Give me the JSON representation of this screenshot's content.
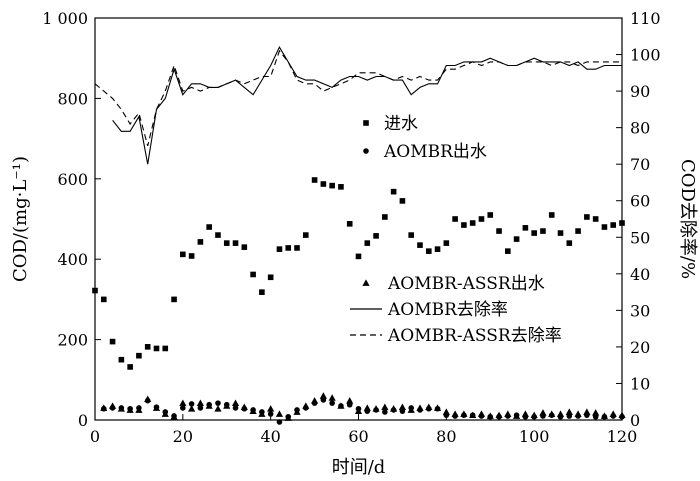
{
  "chart_data": {
    "type": "scatter",
    "xlabel": "时间/d",
    "ylabel_left": "COD/(mg·L⁻¹)",
    "ylabel_right": "COD去除率/%",
    "xlim": [
      0,
      120
    ],
    "ylim_left": [
      0,
      1000
    ],
    "ylim_right": [
      0,
      110
    ],
    "x_ticks": [
      0,
      20,
      40,
      60,
      80,
      100,
      120
    ],
    "y_left_ticks": [
      0,
      200,
      400,
      600,
      800,
      1000
    ],
    "y_left_tick_labels": [
      "0",
      "200",
      "400",
      "600",
      "800",
      "1 000"
    ],
    "y_right_ticks": [
      0,
      10,
      20,
      30,
      40,
      50,
      60,
      70,
      80,
      90,
      100,
      110
    ],
    "grid": false,
    "series": [
      {
        "name": "进水",
        "axis": "left",
        "marker": "square",
        "points": [
          [
            0,
            322
          ],
          [
            2,
            300
          ],
          [
            4,
            195
          ],
          [
            6,
            150
          ],
          [
            8,
            132
          ],
          [
            10,
            160
          ],
          [
            12,
            182
          ],
          [
            14,
            178
          ],
          [
            16,
            178
          ],
          [
            18,
            300
          ],
          [
            20,
            412
          ],
          [
            22,
            408
          ],
          [
            24,
            443
          ],
          [
            26,
            480
          ],
          [
            28,
            460
          ],
          [
            30,
            440
          ],
          [
            32,
            440
          ],
          [
            34,
            430
          ],
          [
            36,
            362
          ],
          [
            38,
            318
          ],
          [
            40,
            355
          ],
          [
            42,
            425
          ],
          [
            44,
            428
          ],
          [
            46,
            428
          ],
          [
            48,
            460
          ],
          [
            50,
            597
          ],
          [
            52,
            587
          ],
          [
            54,
            583
          ],
          [
            56,
            580
          ],
          [
            58,
            488
          ],
          [
            60,
            407
          ],
          [
            62,
            440
          ],
          [
            64,
            458
          ],
          [
            66,
            505
          ],
          [
            68,
            568
          ],
          [
            70,
            545
          ],
          [
            72,
            460
          ],
          [
            74,
            435
          ],
          [
            76,
            420
          ],
          [
            78,
            425
          ],
          [
            80,
            440
          ],
          [
            82,
            500
          ],
          [
            84,
            485
          ],
          [
            86,
            490
          ],
          [
            88,
            500
          ],
          [
            90,
            510
          ],
          [
            92,
            470
          ],
          [
            94,
            420
          ],
          [
            96,
            450
          ],
          [
            98,
            478
          ],
          [
            100,
            465
          ],
          [
            102,
            470
          ],
          [
            104,
            510
          ],
          [
            106,
            465
          ],
          [
            108,
            440
          ],
          [
            110,
            470
          ],
          [
            112,
            505
          ],
          [
            114,
            500
          ],
          [
            116,
            480
          ],
          [
            118,
            485
          ],
          [
            120,
            490
          ]
        ]
      },
      {
        "name": "AOMBR出水",
        "axis": "left",
        "marker": "circle",
        "points": [
          [
            2,
            28
          ],
          [
            4,
            30
          ],
          [
            6,
            30
          ],
          [
            8,
            28
          ],
          [
            10,
            30
          ],
          [
            12,
            48
          ],
          [
            14,
            32
          ],
          [
            16,
            20
          ],
          [
            18,
            10
          ],
          [
            20,
            30
          ],
          [
            22,
            40
          ],
          [
            24,
            30
          ],
          [
            26,
            38
          ],
          [
            28,
            42
          ],
          [
            30,
            38
          ],
          [
            32,
            30
          ],
          [
            34,
            28
          ],
          [
            36,
            25
          ],
          [
            38,
            20
          ],
          [
            40,
            15
          ],
          [
            42,
            -5
          ],
          [
            44,
            8
          ],
          [
            46,
            25
          ],
          [
            48,
            30
          ],
          [
            50,
            42
          ],
          [
            52,
            50
          ],
          [
            54,
            42
          ],
          [
            56,
            35
          ],
          [
            58,
            38
          ],
          [
            60,
            28
          ],
          [
            62,
            22
          ],
          [
            64,
            25
          ],
          [
            66,
            20
          ],
          [
            68,
            25
          ],
          [
            70,
            22
          ],
          [
            72,
            30
          ],
          [
            74,
            25
          ],
          [
            76,
            28
          ],
          [
            78,
            28
          ],
          [
            80,
            12
          ],
          [
            82,
            10
          ],
          [
            84,
            12
          ],
          [
            86,
            12
          ],
          [
            88,
            10
          ],
          [
            90,
            8
          ],
          [
            92,
            8
          ],
          [
            94,
            10
          ],
          [
            96,
            12
          ],
          [
            98,
            8
          ],
          [
            100,
            8
          ],
          [
            102,
            10
          ],
          [
            104,
            12
          ],
          [
            106,
            8
          ],
          [
            108,
            10
          ],
          [
            110,
            10
          ],
          [
            112,
            12
          ],
          [
            114,
            8
          ],
          [
            116,
            8
          ],
          [
            118,
            10
          ],
          [
            120,
            8
          ]
        ]
      },
      {
        "name": "AOMBR-ASSR出水",
        "axis": "left",
        "marker": "triangle",
        "points": [
          [
            2,
            30
          ],
          [
            4,
            35
          ],
          [
            6,
            28
          ],
          [
            8,
            25
          ],
          [
            10,
            25
          ],
          [
            12,
            52
          ],
          [
            14,
            30
          ],
          [
            16,
            15
          ],
          [
            18,
            8
          ],
          [
            20,
            42
          ],
          [
            22,
            28
          ],
          [
            24,
            42
          ],
          [
            26,
            35
          ],
          [
            28,
            28
          ],
          [
            30,
            35
          ],
          [
            32,
            42
          ],
          [
            34,
            32
          ],
          [
            36,
            22
          ],
          [
            38,
            15
          ],
          [
            40,
            28
          ],
          [
            42,
            15
          ],
          [
            44,
            5
          ],
          [
            46,
            20
          ],
          [
            48,
            35
          ],
          [
            50,
            48
          ],
          [
            52,
            60
          ],
          [
            54,
            55
          ],
          [
            56,
            35
          ],
          [
            58,
            48
          ],
          [
            60,
            22
          ],
          [
            62,
            30
          ],
          [
            64,
            28
          ],
          [
            66,
            32
          ],
          [
            68,
            28
          ],
          [
            70,
            32
          ],
          [
            72,
            25
          ],
          [
            74,
            30
          ],
          [
            76,
            32
          ],
          [
            78,
            30
          ],
          [
            80,
            20
          ],
          [
            82,
            15
          ],
          [
            84,
            15
          ],
          [
            86,
            12
          ],
          [
            88,
            15
          ],
          [
            90,
            10
          ],
          [
            92,
            12
          ],
          [
            94,
            15
          ],
          [
            96,
            10
          ],
          [
            98,
            15
          ],
          [
            100,
            12
          ],
          [
            102,
            18
          ],
          [
            104,
            15
          ],
          [
            106,
            15
          ],
          [
            108,
            20
          ],
          [
            110,
            15
          ],
          [
            112,
            20
          ],
          [
            114,
            18
          ],
          [
            116,
            10
          ],
          [
            118,
            15
          ],
          [
            120,
            12
          ]
        ]
      },
      {
        "name": "AOMBR去除率",
        "axis": "right",
        "style": "solid",
        "points": [
          [
            4,
            82
          ],
          [
            6,
            79
          ],
          [
            8,
            79
          ],
          [
            10,
            83
          ],
          [
            12,
            70
          ],
          [
            14,
            85
          ],
          [
            16,
            88
          ],
          [
            18,
            96
          ],
          [
            20,
            89
          ],
          [
            22,
            92
          ],
          [
            24,
            92
          ],
          [
            26,
            91
          ],
          [
            28,
            91
          ],
          [
            30,
            92
          ],
          [
            32,
            93
          ],
          [
            34,
            91
          ],
          [
            36,
            89
          ],
          [
            38,
            93
          ],
          [
            40,
            97
          ],
          [
            42,
            102
          ],
          [
            44,
            98
          ],
          [
            46,
            94
          ],
          [
            48,
            93
          ],
          [
            50,
            93
          ],
          [
            52,
            92
          ],
          [
            54,
            91
          ],
          [
            56,
            93
          ],
          [
            58,
            94
          ],
          [
            60,
            94
          ],
          [
            62,
            93
          ],
          [
            64,
            94
          ],
          [
            66,
            94
          ],
          [
            68,
            93
          ],
          [
            70,
            93
          ],
          [
            72,
            89
          ],
          [
            74,
            91
          ],
          [
            76,
            92
          ],
          [
            78,
            92
          ],
          [
            80,
            97
          ],
          [
            82,
            97
          ],
          [
            84,
            98
          ],
          [
            86,
            98
          ],
          [
            88,
            98
          ],
          [
            90,
            99
          ],
          [
            92,
            98
          ],
          [
            94,
            97
          ],
          [
            96,
            97
          ],
          [
            98,
            98
          ],
          [
            100,
            99
          ],
          [
            102,
            98
          ],
          [
            104,
            98
          ],
          [
            106,
            98
          ],
          [
            108,
            97
          ],
          [
            110,
            98
          ],
          [
            112,
            96
          ],
          [
            114,
            96
          ],
          [
            116,
            97
          ],
          [
            118,
            97
          ],
          [
            120,
            97
          ]
        ]
      },
      {
        "name": "AOMBR-ASSR去除率",
        "axis": "right",
        "style": "dashed",
        "points": [
          [
            0,
            92
          ],
          [
            2,
            90
          ],
          [
            4,
            88
          ],
          [
            6,
            85
          ],
          [
            8,
            81
          ],
          [
            10,
            84
          ],
          [
            12,
            75
          ],
          [
            14,
            85
          ],
          [
            16,
            90
          ],
          [
            18,
            97
          ],
          [
            20,
            90
          ],
          [
            22,
            91
          ],
          [
            24,
            90
          ],
          [
            26,
            91
          ],
          [
            28,
            91
          ],
          [
            30,
            92
          ],
          [
            32,
            93
          ],
          [
            34,
            92
          ],
          [
            36,
            93
          ],
          [
            38,
            94
          ],
          [
            40,
            94
          ],
          [
            42,
            101
          ],
          [
            44,
            98
          ],
          [
            46,
            93
          ],
          [
            48,
            92
          ],
          [
            50,
            92
          ],
          [
            52,
            90
          ],
          [
            54,
            91
          ],
          [
            56,
            92
          ],
          [
            58,
            93
          ],
          [
            60,
            95
          ],
          [
            62,
            95
          ],
          [
            64,
            95
          ],
          [
            66,
            94
          ],
          [
            68,
            93
          ],
          [
            70,
            94
          ],
          [
            72,
            93
          ],
          [
            74,
            94
          ],
          [
            76,
            93
          ],
          [
            78,
            93
          ],
          [
            80,
            96
          ],
          [
            82,
            96
          ],
          [
            84,
            97
          ],
          [
            86,
            98
          ],
          [
            88,
            97
          ],
          [
            90,
            98
          ],
          [
            92,
            98
          ],
          [
            94,
            97
          ],
          [
            96,
            97
          ],
          [
            98,
            98
          ],
          [
            100,
            98
          ],
          [
            102,
            98
          ],
          [
            104,
            97
          ],
          [
            106,
            98
          ],
          [
            108,
            98
          ],
          [
            110,
            97
          ],
          [
            112,
            98
          ],
          [
            114,
            98
          ],
          [
            116,
            98
          ],
          [
            118,
            98
          ],
          [
            120,
            98
          ]
        ]
      }
    ],
    "legend_top": [
      "进水",
      "AOMBR出水"
    ],
    "legend_bottom": [
      "AOMBR-ASSR出水",
      "AOMBR去除率",
      "AOMBR-ASSR去除率"
    ]
  }
}
